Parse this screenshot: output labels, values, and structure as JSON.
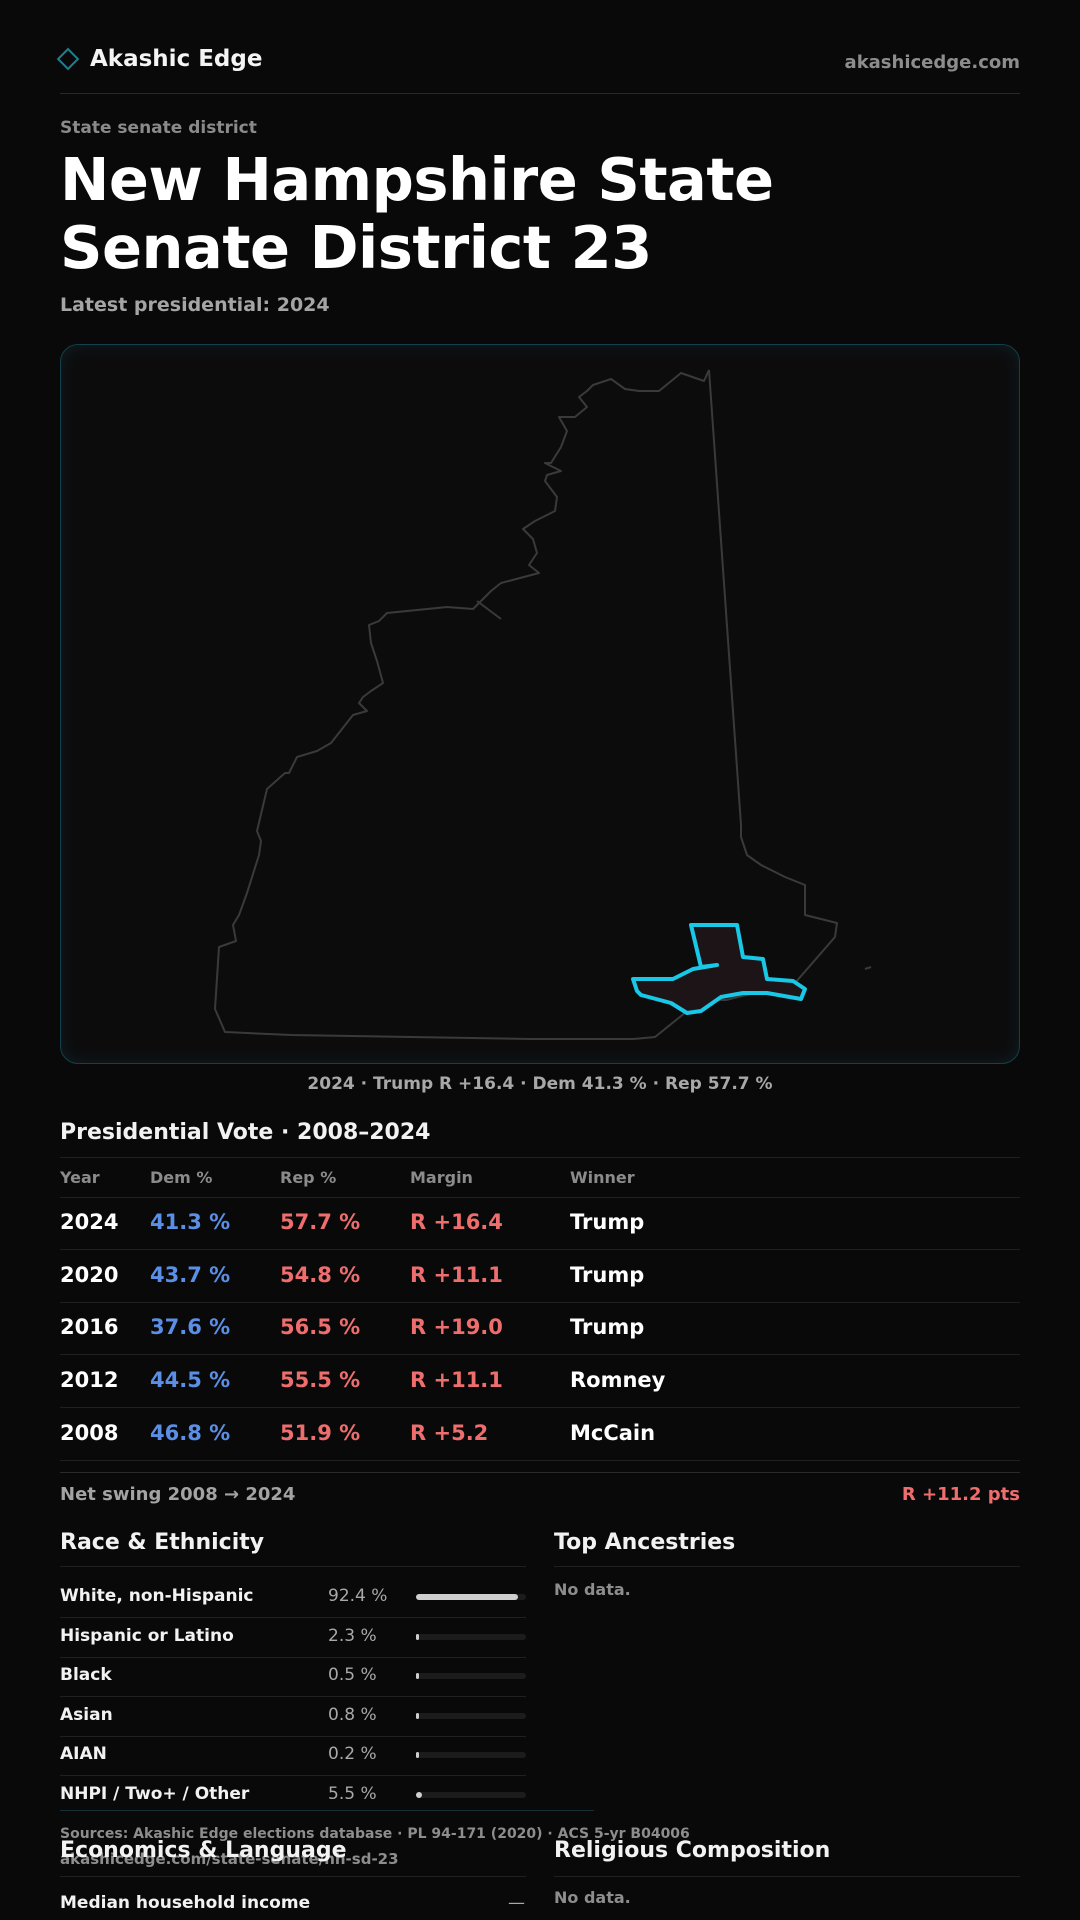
{
  "header": {
    "brand": "Akashic Edge",
    "site": "akashicedge.com"
  },
  "page": {
    "kicker": "State senate district",
    "title": "New Hampshire State Senate District 23",
    "subtitle": "Latest presidential: 2024"
  },
  "map": {
    "caption": "2024 · Trump R +16.4 · Dem 41.3 % · Rep 57.7 %",
    "highlight_color": "#19c8e6"
  },
  "presidential": {
    "title": "Presidential Vote · 2008–2024",
    "headers": {
      "year": "Year",
      "dem": "Dem %",
      "rep": "Rep %",
      "margin": "Margin",
      "winner": "Winner"
    },
    "rows": [
      {
        "year": "2024",
        "dem": "41.3 %",
        "rep": "57.7 %",
        "margin": "R +16.4",
        "winner": "Trump"
      },
      {
        "year": "2020",
        "dem": "43.7 %",
        "rep": "54.8 %",
        "margin": "R +11.1",
        "winner": "Trump"
      },
      {
        "year": "2016",
        "dem": "37.6 %",
        "rep": "56.5 %",
        "margin": "R +19.0",
        "winner": "Trump"
      },
      {
        "year": "2012",
        "dem": "44.5 %",
        "rep": "55.5 %",
        "margin": "R +11.1",
        "winner": "Romney"
      },
      {
        "year": "2008",
        "dem": "46.8 %",
        "rep": "51.9 %",
        "margin": "R +5.2",
        "winner": "McCain"
      }
    ],
    "swing_label": "Net swing 2008 → 2024",
    "swing_value": "R +11.2 pts"
  },
  "race": {
    "title": "Race & Ethnicity",
    "rows": [
      {
        "label": "White, non-Hispanic",
        "value": "92.4 %",
        "fraction": 0.924
      },
      {
        "label": "Hispanic or Latino",
        "value": "2.3 %",
        "fraction": 0.023
      },
      {
        "label": "Black",
        "value": "0.5 %",
        "fraction": 0.005
      },
      {
        "label": "Asian",
        "value": "0.8 %",
        "fraction": 0.008
      },
      {
        "label": "AIAN",
        "value": "0.2 %",
        "fraction": 0.002
      },
      {
        "label": "NHPI / Two+ / Other",
        "value": "5.5 %",
        "fraction": 0.055
      }
    ]
  },
  "ancestries": {
    "title": "Top Ancestries",
    "empty": "No data."
  },
  "economics": {
    "title": "Economics & Language",
    "median_income_label": "Median household income",
    "median_income_value": "—"
  },
  "religion": {
    "title": "Religious Composition",
    "empty": "No data."
  },
  "footer": {
    "sources": "Sources: Akashic Edge elections database · PL 94-171 (2020) · ACS 5-yr B04006",
    "url": "akashicedge.com/state-senate/nh-sd-23"
  }
}
